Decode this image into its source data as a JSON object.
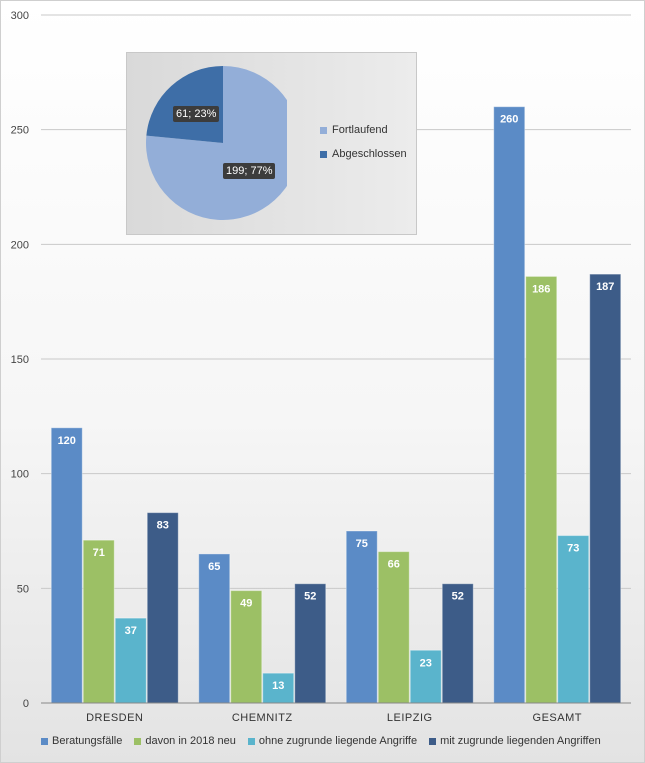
{
  "chart_data": [
    {
      "type": "bar",
      "categories": [
        "DRESDEN",
        "CHEMNITZ",
        "LEIPZIG",
        "GESAMT"
      ],
      "series": [
        {
          "name": "Beratungsfälle",
          "values": [
            120,
            65,
            75,
            260
          ],
          "color": "#5b8bc6"
        },
        {
          "name": "davon in 2018 neu",
          "values": [
            71,
            49,
            66,
            186
          ],
          "color": "#9cc065"
        },
        {
          "name": "ohne zugrunde liegende Angriffe",
          "values": [
            37,
            13,
            23,
            73
          ],
          "color": "#5ab4cc"
        },
        {
          "name": "mit zugrunde liegenden Angriffen",
          "values": [
            83,
            52,
            52,
            187
          ],
          "color": "#3d5c88"
        }
      ],
      "yticks": [
        "0",
        "50",
        "100",
        "150",
        "200",
        "250",
        "300"
      ],
      "ylim": [
        0,
        300
      ],
      "grid": true,
      "legend": "bottom"
    },
    {
      "type": "pie",
      "slices": [
        {
          "name": "Fortlaufend",
          "value": 199,
          "label": "199; 77%",
          "color": "#93aed8"
        },
        {
          "name": "Abgeschlossen",
          "value": 61,
          "label": "61; 23%",
          "color": "#3e6ea7"
        }
      ],
      "legend": "right"
    }
  ]
}
